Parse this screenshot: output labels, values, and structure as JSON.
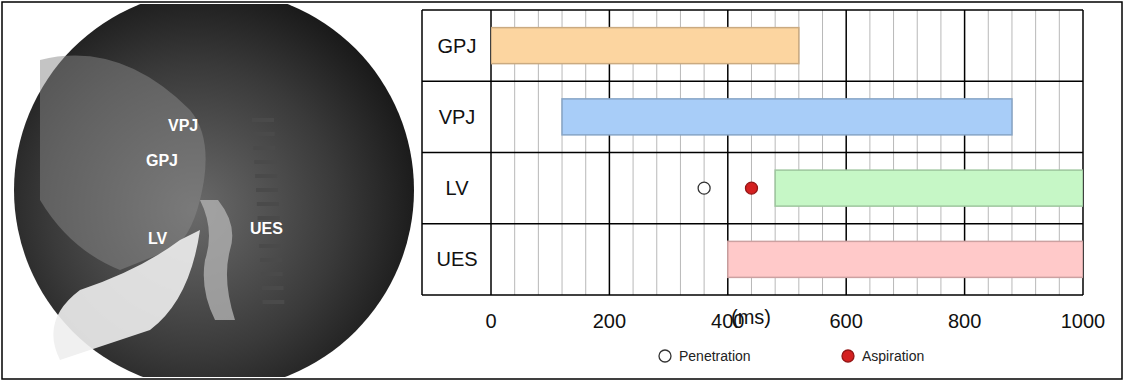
{
  "image": {
    "labels": [
      "VPJ",
      "GPJ",
      "LV",
      "UES"
    ]
  },
  "chart_data": {
    "type": "timeline",
    "orientation": "horizontal",
    "categories": [
      "GPJ",
      "VPJ",
      "LV",
      "UES"
    ],
    "start": [
      0,
      120,
      480,
      400
    ],
    "end": [
      520,
      880,
      1000,
      1000
    ],
    "colors": [
      "#fcd5a0",
      "#a8cdf8",
      "#c6f7c6",
      "#ffc9c9"
    ],
    "events": [
      {
        "name": "Penetration",
        "category": "LV",
        "x": 360,
        "color": "#ffffff",
        "marker": "open-circle"
      },
      {
        "name": "Aspiration",
        "category": "LV",
        "x": 440,
        "color": "#d42020",
        "marker": "circle"
      }
    ],
    "x_label": "(ms)",
    "xlim": [
      0,
      1000
    ],
    "xticks": [
      0,
      200,
      400,
      600,
      800,
      1000
    ],
    "xminor_ticks": [
      40,
      80,
      120,
      160,
      240,
      280,
      320,
      360,
      440,
      480,
      520,
      560,
      640,
      680,
      720,
      760,
      840,
      880,
      920,
      960
    ],
    "grid": true,
    "legend": "bottom"
  }
}
